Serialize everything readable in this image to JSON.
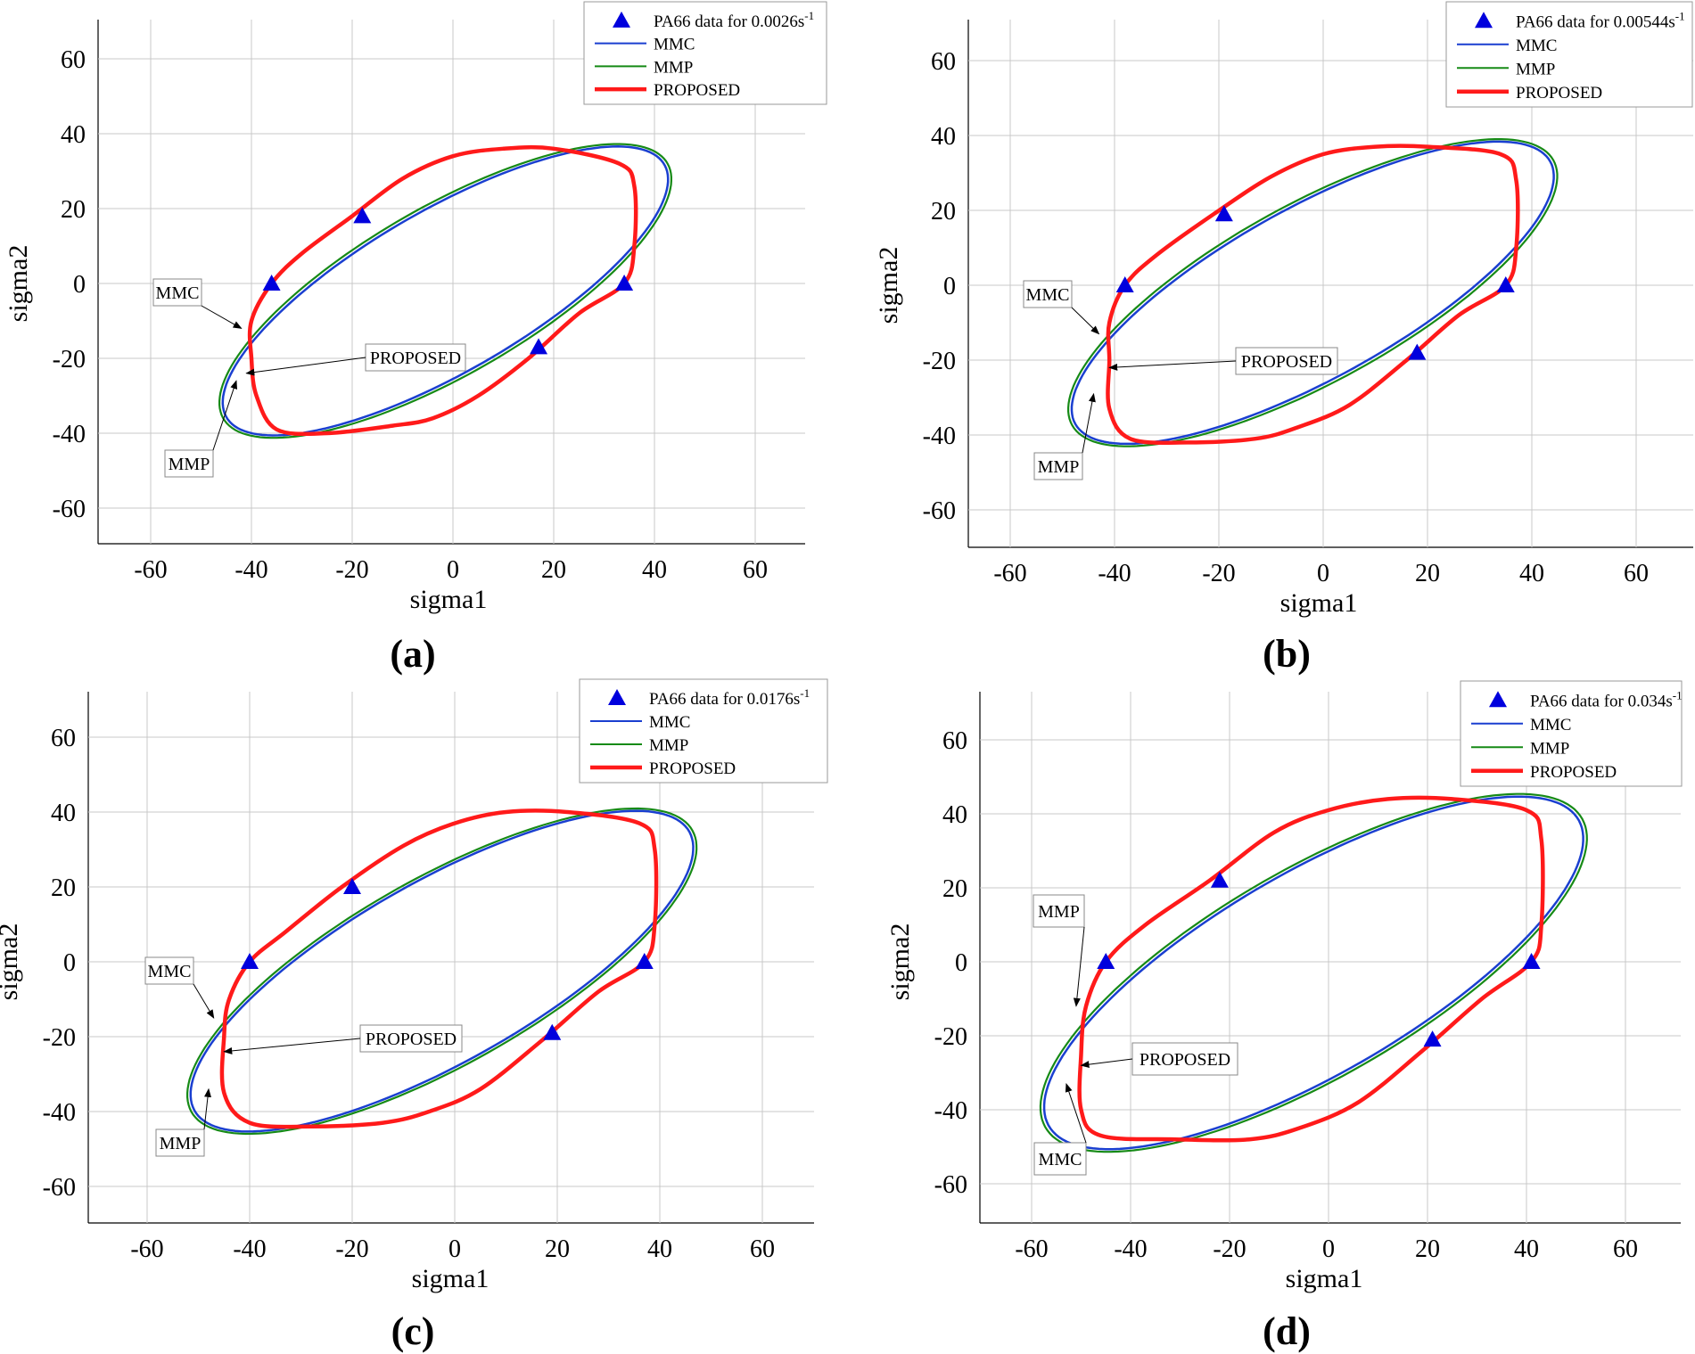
{
  "figure": {
    "panels": [
      {
        "caption": "(a)",
        "legend_label": "PA66 data for 0.0026s",
        "legend_sup": "-1"
      },
      {
        "caption": "(b)",
        "legend_label": "PA66 data for 0.00544s",
        "legend_sup": "-1"
      },
      {
        "caption": "(c)",
        "legend_label": "PA66 data for 0.0176s",
        "legend_sup": "-1"
      },
      {
        "caption": "(d)",
        "legend_label": "PA66 data for 0.034s",
        "legend_sup": "-1"
      }
    ]
  },
  "colors": {
    "data": "#0000dd",
    "mmc": "#1a3fd0",
    "mmp": "#168a16",
    "proposed": "#ff1a1a",
    "grid": "#c8c8c8"
  },
  "chart_data": [
    {
      "type": "line",
      "panel": "(a)",
      "xlabel": "sigma1",
      "ylabel": "sigma2",
      "xlim": [
        -70,
        70
      ],
      "ylim": [
        -70,
        70
      ],
      "xticks": [
        -60,
        -40,
        -20,
        0,
        20,
        40,
        60
      ],
      "yticks": [
        -60,
        -40,
        -20,
        0,
        20,
        40,
        60
      ],
      "legend": [
        "PA66 data for 0.0026s-1",
        "MMC",
        "MMP",
        "PROPOSED"
      ],
      "legend_position": "top-right",
      "data_points": [
        [
          -36,
          0
        ],
        [
          -18,
          18
        ],
        [
          34,
          0
        ],
        [
          17,
          -17
        ]
      ],
      "series": [
        {
          "name": "MMC",
          "style": "ellipse",
          "center": [
            -1.5,
            -2
          ],
          "semi_axes": [
            55.3,
            19.6
          ],
          "angle_deg": 40
        },
        {
          "name": "MMP",
          "style": "ellipse",
          "center": [
            -1.5,
            -2
          ],
          "semi_axes": [
            56,
            20.4
          ],
          "angle_deg": 40
        },
        {
          "name": "PROPOSED",
          "points": [
            [
              -36,
              0
            ],
            [
              -30,
              8
            ],
            [
              -20,
              18
            ],
            [
              -10,
              28
            ],
            [
              0,
              34
            ],
            [
              10,
              36
            ],
            [
              20,
              36
            ],
            [
              33,
              32
            ],
            [
              36,
              26
            ],
            [
              36,
              10
            ],
            [
              34,
              0
            ],
            [
              25,
              -8
            ],
            [
              15,
              -20
            ],
            [
              5,
              -30
            ],
            [
              -4,
              -36
            ],
            [
              -12,
              -38
            ],
            [
              -25,
              -40
            ],
            [
              -35,
              -39
            ],
            [
              -39,
              -30
            ],
            [
              -40,
              -20
            ],
            [
              -40,
              -10
            ],
            [
              -36,
              0
            ]
          ]
        }
      ],
      "annotations": [
        {
          "text": "MMC",
          "target": [
            -42,
            -12
          ]
        },
        {
          "text": "PROPOSED",
          "target": [
            -41,
            -24
          ]
        },
        {
          "text": "MMP",
          "target": [
            -43,
            -26
          ]
        }
      ]
    },
    {
      "type": "line",
      "panel": "(b)",
      "xlabel": "sigma1",
      "ylabel": "sigma2",
      "xlim": [
        -70,
        70
      ],
      "ylim": [
        -70,
        70
      ],
      "xticks": [
        -60,
        -40,
        -20,
        0,
        20,
        40,
        60
      ],
      "yticks": [
        -60,
        -40,
        -20,
        0,
        20,
        40,
        60
      ],
      "legend": [
        "PA66 data for 0.00544s-1",
        "MMC",
        "MMP",
        "PROPOSED"
      ],
      "legend_position": "top-right",
      "data_points": [
        [
          -38,
          0
        ],
        [
          -19,
          19
        ],
        [
          35,
          0
        ],
        [
          18,
          -18
        ]
      ],
      "series": [
        {
          "name": "MMC",
          "style": "ellipse",
          "center": [
            -2,
            -2
          ],
          "semi_axes": [
            57.8,
            20.6
          ],
          "angle_deg": 40
        },
        {
          "name": "MMP",
          "style": "ellipse",
          "center": [
            -2,
            -2
          ],
          "semi_axes": [
            58.5,
            21.4
          ],
          "angle_deg": 40
        },
        {
          "name": "PROPOSED",
          "points": [
            [
              -38,
              0
            ],
            [
              -32,
              8
            ],
            [
              -21,
              19
            ],
            [
              -10,
              29
            ],
            [
              0,
              35
            ],
            [
              10,
              37
            ],
            [
              20,
              37
            ],
            [
              34,
              35
            ],
            [
              37,
              28
            ],
            [
              37,
              10
            ],
            [
              35,
              0
            ],
            [
              26,
              -8
            ],
            [
              16,
              -20
            ],
            [
              5,
              -32
            ],
            [
              -5,
              -38
            ],
            [
              -13,
              -41
            ],
            [
              -26,
              -42
            ],
            [
              -37,
              -41
            ],
            [
              -41,
              -33
            ],
            [
              -41,
              -20
            ],
            [
              -41,
              -10
            ],
            [
              -38,
              0
            ]
          ]
        }
      ],
      "annotations": [
        {
          "text": "MMC",
          "target": [
            -43,
            -13
          ]
        },
        {
          "text": "PROPOSED",
          "target": [
            -41,
            -22
          ]
        },
        {
          "text": "MMP",
          "target": [
            -44,
            -29
          ]
        }
      ]
    },
    {
      "type": "line",
      "panel": "(c)",
      "xlabel": "sigma1",
      "ylabel": "sigma2",
      "xlim": [
        -70,
        70
      ],
      "ylim": [
        -70,
        70
      ],
      "xticks": [
        -60,
        -40,
        -20,
        0,
        20,
        40,
        60
      ],
      "yticks": [
        -60,
        -40,
        -20,
        0,
        20,
        40,
        60
      ],
      "legend": [
        "PA66 data for 0.0176s-1",
        "MMC",
        "MMP",
        "PROPOSED"
      ],
      "legend_position": "top-right",
      "data_points": [
        [
          -40,
          0
        ],
        [
          -20,
          20
        ],
        [
          37,
          0
        ],
        [
          19,
          -19
        ]
      ],
      "series": [
        {
          "name": "MMC",
          "style": "ellipse",
          "center": [
            -2.5,
            -2.5
          ],
          "semi_axes": [
            61.3,
            21.9
          ],
          "angle_deg": 40
        },
        {
          "name": "MMP",
          "style": "ellipse",
          "center": [
            -2.5,
            -2.5
          ],
          "semi_axes": [
            62,
            22.6
          ],
          "angle_deg": 40
        },
        {
          "name": "PROPOSED",
          "points": [
            [
              -40,
              0
            ],
            [
              -33,
              8
            ],
            [
              -22,
              20
            ],
            [
              -10,
              31
            ],
            [
              0,
              37
            ],
            [
              10,
              40
            ],
            [
              22,
              40
            ],
            [
              36,
              37
            ],
            [
              39,
              30
            ],
            [
              39,
              10
            ],
            [
              37,
              0
            ],
            [
              28,
              -8
            ],
            [
              17,
              -21
            ],
            [
              5,
              -34
            ],
            [
              -5,
              -40
            ],
            [
              -14,
              -43
            ],
            [
              -28,
              -44
            ],
            [
              -40,
              -43
            ],
            [
              -45,
              -35
            ],
            [
              -45,
              -20
            ],
            [
              -44,
              -10
            ],
            [
              -40,
              0
            ]
          ]
        }
      ],
      "annotations": [
        {
          "text": "MMC",
          "target": [
            -47,
            -15
          ]
        },
        {
          "text": "PROPOSED",
          "target": [
            -45,
            -24
          ]
        },
        {
          "text": "MMP",
          "target": [
            -48,
            -34
          ]
        }
      ]
    },
    {
      "type": "line",
      "panel": "(d)",
      "xlabel": "sigma1",
      "ylabel": "sigma2",
      "xlim": [
        -70,
        70
      ],
      "ylim": [
        -70,
        70
      ],
      "xticks": [
        -60,
        -40,
        -20,
        0,
        20,
        40,
        60
      ],
      "yticks": [
        -60,
        -40,
        -20,
        0,
        20,
        40,
        60
      ],
      "legend": [
        "PA66 data for 0.034s-1",
        "MMC",
        "MMP",
        "PROPOSED"
      ],
      "legend_position": "top-right",
      "data_points": [
        [
          -45,
          0
        ],
        [
          -22,
          22
        ],
        [
          41,
          0
        ],
        [
          21,
          -21
        ]
      ],
      "series": [
        {
          "name": "MMC",
          "style": "ellipse",
          "center": [
            -3,
            -3
          ],
          "semi_axes": [
            68,
            24.8
          ],
          "angle_deg": 40
        },
        {
          "name": "MMP",
          "style": "ellipse",
          "center": [
            -3,
            -3
          ],
          "semi_axes": [
            68.8,
            25.6
          ],
          "angle_deg": 40
        },
        {
          "name": "PROPOSED",
          "points": [
            [
              -45,
              0
            ],
            [
              -37,
              10
            ],
            [
              -24,
              22
            ],
            [
              -11,
              35
            ],
            [
              0,
              41
            ],
            [
              12,
              44
            ],
            [
              25,
              44
            ],
            [
              40,
              41
            ],
            [
              43,
              33
            ],
            [
              43,
              10
            ],
            [
              41,
              0
            ],
            [
              31,
              -10
            ],
            [
              19,
              -24
            ],
            [
              6,
              -38
            ],
            [
              -6,
              -45
            ],
            [
              -16,
              -48
            ],
            [
              -31,
              -48
            ],
            [
              -46,
              -47
            ],
            [
              -50,
              -40
            ],
            [
              -50,
              -25
            ],
            [
              -49,
              -12
            ],
            [
              -45,
              0
            ]
          ]
        }
      ],
      "annotations": [
        {
          "text": "MMP",
          "target": [
            -51,
            -12
          ]
        },
        {
          "text": "PROPOSED",
          "target": [
            -50,
            -28
          ]
        },
        {
          "text": "MMC",
          "target": [
            -53,
            -33
          ]
        }
      ]
    }
  ]
}
